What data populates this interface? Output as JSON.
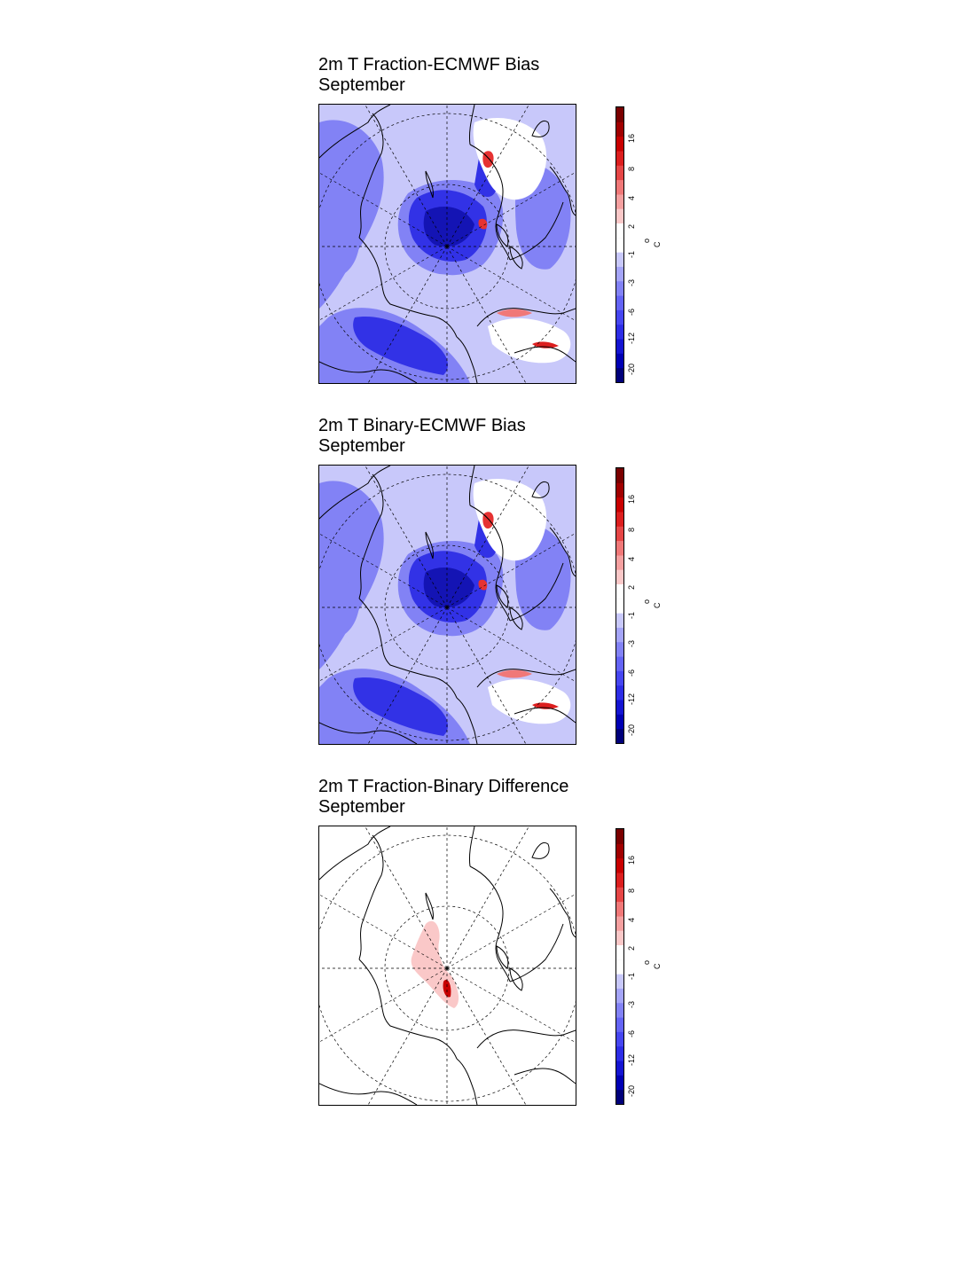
{
  "panels": [
    {
      "title_line1": "2m T Fraction-ECMWF Bias",
      "title_line2": "September",
      "style": "bias"
    },
    {
      "title_line1": "2m T Binary-ECMWF Bias",
      "title_line2": "September",
      "style": "bias"
    },
    {
      "title_line1": "2m T Fraction-Binary Difference",
      "title_line2": "September",
      "style": "difference"
    }
  ],
  "colorbar": {
    "unit_degree": "o",
    "unit_letter": "C",
    "tick_labels": [
      "-20",
      "-12",
      "-6",
      "-3",
      "-1",
      "2",
      "4",
      "8",
      "16"
    ],
    "colors": [
      "#00007a",
      "#0000b4",
      "#1414d2",
      "#2d2de6",
      "#4646f0",
      "#6464f5",
      "#8282f5",
      "#a5a5f8",
      "#c8c8fa",
      "#ffffff",
      "#ffffff",
      "#fac8c8",
      "#f5a0a0",
      "#f07878",
      "#e64646",
      "#dc1e1e",
      "#c80000",
      "#a00000",
      "#7a0000"
    ]
  }
}
